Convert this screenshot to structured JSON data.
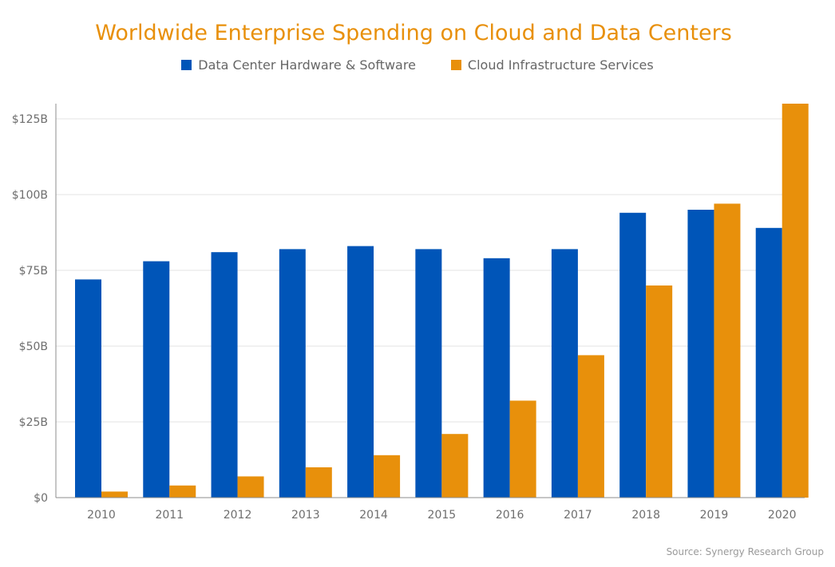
{
  "colors": {
    "title": "#E8900B",
    "series_0": "#0055B8",
    "series_1": "#E8900B",
    "grid": "#e3e3e3",
    "axis": "#8c8c8c",
    "tick_text": "#6e6e6e"
  },
  "chart_data": {
    "type": "bar",
    "title": "Worldwide Enterprise Spending on Cloud and Data Centers",
    "xlabel": "",
    "ylabel": "",
    "categories": [
      "2010",
      "2011",
      "2012",
      "2013",
      "2014",
      "2015",
      "2016",
      "2017",
      "2018",
      "2019",
      "2020"
    ],
    "series": [
      {
        "name": "Data Center Hardware & Software",
        "values": [
          72,
          78,
          81,
          82,
          83,
          82,
          79,
          82,
          94,
          95,
          89
        ]
      },
      {
        "name": "Cloud Infrastructure Services",
        "values": [
          2,
          4,
          7,
          10,
          14,
          21,
          32,
          47,
          70,
          97,
          130
        ]
      }
    ],
    "ylim": [
      0,
      125
    ],
    "yticks": [
      0,
      25,
      50,
      75,
      100,
      125
    ],
    "ytick_labels": [
      "$0",
      "$25B",
      "$50B",
      "$75B",
      "$100B",
      "$125B"
    ],
    "grid": true,
    "legend_position": "top-center"
  },
  "source": "Source: Synergy Research Group"
}
